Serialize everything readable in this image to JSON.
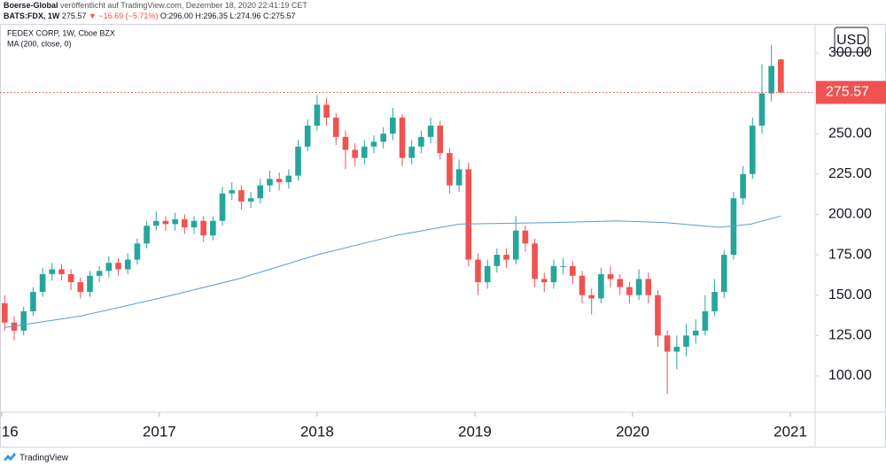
{
  "header": {
    "publisher": "Boerse-Global",
    "published": "veröffentlicht auf TradingView.com, Dezember 18, 2020 22:41:19 CET",
    "symbol": "BATS:FDX, 1W",
    "last": "275.57",
    "change": "▼ −16.69 (−5.71%)",
    "ohlc": "O:296.00 H:296.35 L:274.96 C:275.57"
  },
  "footer": "TradingView",
  "chart_data": {
    "type": "candlestick",
    "title": "FEDEX CORP, 1W, Cboe BZX",
    "currency": "USD",
    "x": [
      2016.02,
      2016.08,
      2016.14,
      2016.2,
      2016.26,
      2016.32,
      2016.38,
      2016.44,
      2016.5,
      2016.56,
      2016.62,
      2016.68,
      2016.74,
      2016.8,
      2016.86,
      2016.92,
      2016.98,
      2017.04,
      2017.1,
      2017.16,
      2017.22,
      2017.28,
      2017.34,
      2017.4,
      2017.46,
      2017.52,
      2017.58,
      2017.64,
      2017.7,
      2017.76,
      2017.82,
      2017.88,
      2017.94,
      2018.0,
      2018.06,
      2018.12,
      2018.18,
      2018.24,
      2018.3,
      2018.36,
      2018.42,
      2018.48,
      2018.54,
      2018.6,
      2018.66,
      2018.72,
      2018.78,
      2018.84,
      2018.9,
      2018.96,
      2019.02,
      2019.08,
      2019.14,
      2019.2,
      2019.26,
      2019.32,
      2019.38,
      2019.44,
      2019.5,
      2019.56,
      2019.62,
      2019.68,
      2019.74,
      2019.8,
      2019.86,
      2019.92,
      2019.98,
      2020.04,
      2020.1,
      2020.16,
      2020.22,
      2020.28,
      2020.34,
      2020.4,
      2020.46,
      2020.52,
      2020.58,
      2020.64,
      2020.7,
      2020.76,
      2020.82,
      2020.88,
      2020.94
    ],
    "open": [
      145,
      133,
      128,
      140,
      152,
      163,
      166,
      163,
      158,
      152,
      162,
      165,
      170,
      166,
      172,
      182,
      193,
      196,
      194,
      197,
      192,
      196,
      187,
      196,
      213,
      215,
      208,
      210,
      218,
      222,
      220,
      224,
      242,
      255,
      268,
      260,
      248,
      240,
      235,
      242,
      245,
      250,
      260,
      235,
      242,
      248,
      255,
      238,
      218,
      228,
      172,
      158,
      168,
      175,
      172,
      190,
      182,
      160,
      158,
      168,
      168,
      162,
      150,
      148,
      163,
      160,
      155,
      150,
      160,
      150,
      125,
      115,
      118,
      125,
      128,
      140,
      152,
      175,
      210,
      225,
      255,
      275,
      296
    ],
    "high": [
      150,
      137,
      143,
      155,
      167,
      170,
      169,
      166,
      161,
      165,
      168,
      174,
      173,
      176,
      185,
      196,
      202,
      199,
      201,
      200,
      199,
      199,
      199,
      217,
      220,
      218,
      214,
      222,
      227,
      226,
      228,
      246,
      259,
      274,
      272,
      263,
      252,
      244,
      246,
      249,
      254,
      266,
      262,
      246,
      252,
      260,
      258,
      241,
      234,
      232,
      176,
      172,
      179,
      179,
      199,
      193,
      185,
      164,
      172,
      173,
      171,
      165,
      154,
      167,
      168,
      163,
      158,
      166,
      164,
      153,
      128,
      125,
      132,
      135,
      150,
      160,
      178,
      214,
      230,
      260,
      293,
      305,
      296.35
    ],
    "low": [
      128,
      122,
      125,
      137,
      149,
      159,
      159,
      153,
      148,
      149,
      158,
      161,
      162,
      163,
      169,
      179,
      190,
      190,
      190,
      188,
      188,
      183,
      184,
      193,
      209,
      203,
      204,
      207,
      214,
      215,
      216,
      221,
      239,
      252,
      255,
      243,
      228,
      230,
      231,
      238,
      241,
      246,
      230,
      231,
      238,
      244,
      234,
      213,
      214,
      168,
      150,
      154,
      164,
      167,
      169,
      177,
      155,
      152,
      154,
      163,
      157,
      145,
      138,
      145,
      155,
      150,
      145,
      147,
      145,
      118,
      89,
      104,
      112,
      120,
      125,
      137,
      148,
      172,
      206,
      222,
      250,
      270,
      274.96
    ],
    "close": [
      133,
      128,
      140,
      152,
      163,
      166,
      163,
      158,
      152,
      162,
      165,
      170,
      166,
      172,
      182,
      193,
      196,
      194,
      197,
      192,
      196,
      187,
      196,
      213,
      215,
      208,
      210,
      218,
      222,
      220,
      224,
      242,
      255,
      268,
      260,
      248,
      240,
      235,
      242,
      245,
      250,
      260,
      235,
      242,
      248,
      255,
      238,
      218,
      228,
      172,
      158,
      168,
      175,
      172,
      190,
      182,
      160,
      158,
      168,
      168,
      162,
      150,
      148,
      163,
      160,
      155,
      150,
      160,
      150,
      125,
      115,
      118,
      125,
      128,
      140,
      152,
      175,
      210,
      225,
      255,
      275,
      292,
      275.57
    ],
    "up_color": "#26a69a",
    "down_color": "#ef5350",
    "ma": {
      "name": "MA (200, close, 0)",
      "color": "#5b9bd5",
      "x": [
        2016.02,
        2016.5,
        2017.0,
        2017.5,
        2018.0,
        2018.5,
        2018.9,
        2019.5,
        2019.9,
        2020.2,
        2020.55,
        2020.75,
        2020.94
      ],
      "values": [
        130,
        137,
        148,
        160,
        175,
        187,
        194,
        195,
        196,
        195,
        192,
        194,
        199
      ]
    },
    "xlim": [
      2015.99,
      2021.157
    ],
    "xticks": [
      {
        "value": 2016,
        "label": "16"
      },
      2017,
      2018,
      2019,
      2020,
      2021
    ],
    "ylim": [
      77.5,
      317.5
    ],
    "yticks": [
      {
        "value": 100,
        "label": "100.00"
      },
      {
        "value": 125,
        "label": "125.00"
      },
      {
        "value": 150,
        "label": "150.00"
      },
      {
        "value": 175,
        "label": "175.00"
      },
      {
        "value": 200,
        "label": "200.00"
      },
      {
        "value": 225,
        "label": "225.00"
      },
      {
        "value": 250,
        "label": "250.00"
      },
      {
        "value": 275,
        "label": "275.00"
      },
      {
        "value": 300,
        "label": "300.00"
      }
    ],
    "grid": false
  }
}
